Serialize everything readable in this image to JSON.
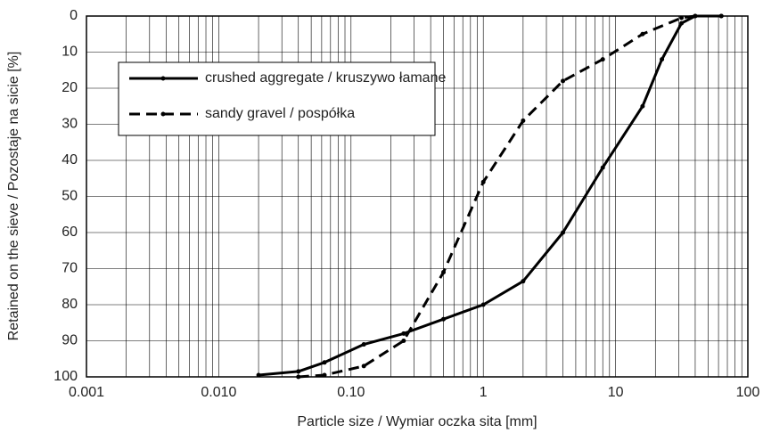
{
  "chart_data": {
    "type": "line",
    "xlabel": "Particle size / Wymiar oczka sita [mm]",
    "ylabel": "Retained on the sieve / Pozostaje na sicie [%]",
    "xscale": "log",
    "xlim": [
      0.001,
      100
    ],
    "xticks": [
      0.001,
      {
        "value": 0.01,
        "label": "0.010"
      },
      {
        "value": 0.1,
        "label": "0.10"
      },
      1,
      10,
      100
    ],
    "xminorticks": [
      0.002,
      0.003,
      0.004,
      0.005,
      0.006,
      0.007,
      0.008,
      0.009,
      0.02,
      0.03,
      0.04,
      0.05,
      0.06,
      0.07,
      0.08,
      0.09,
      0.2,
      0.3,
      0.4,
      0.5,
      0.6,
      0.7,
      0.8,
      0.9,
      2,
      3,
      4,
      5,
      6,
      7,
      8,
      9,
      20,
      30,
      40,
      50,
      60,
      70,
      80,
      90
    ],
    "ylim": [
      0,
      100
    ],
    "yinverted": true,
    "yticks": [
      0,
      10,
      20,
      30,
      40,
      50,
      60,
      70,
      80,
      90,
      100
    ],
    "grid": true,
    "legend": "upper left",
    "series": [
      {
        "name": "crushed aggregate / kruszywo łamane",
        "color": "#000000",
        "dash": "solid",
        "x": [
          0.02,
          0.04,
          0.063,
          0.125,
          0.25,
          0.5,
          1,
          2,
          4,
          8,
          16,
          22.4,
          31.5,
          40,
          63
        ],
        "values": [
          99.5,
          98.5,
          96,
          91,
          88,
          84,
          80,
          73.5,
          60,
          42,
          25,
          12,
          2,
          0,
          0
        ]
      },
      {
        "name": "sandy gravel / pospółka",
        "color": "#000000",
        "dash": "dashed",
        "x": [
          0.04,
          0.063,
          0.125,
          0.25,
          0.5,
          1,
          2,
          4,
          8,
          16,
          31.5,
          40,
          63
        ],
        "values": [
          100,
          99.5,
          97,
          90,
          71,
          46,
          29,
          18,
          12,
          5,
          0.5,
          0,
          0
        ]
      }
    ]
  }
}
